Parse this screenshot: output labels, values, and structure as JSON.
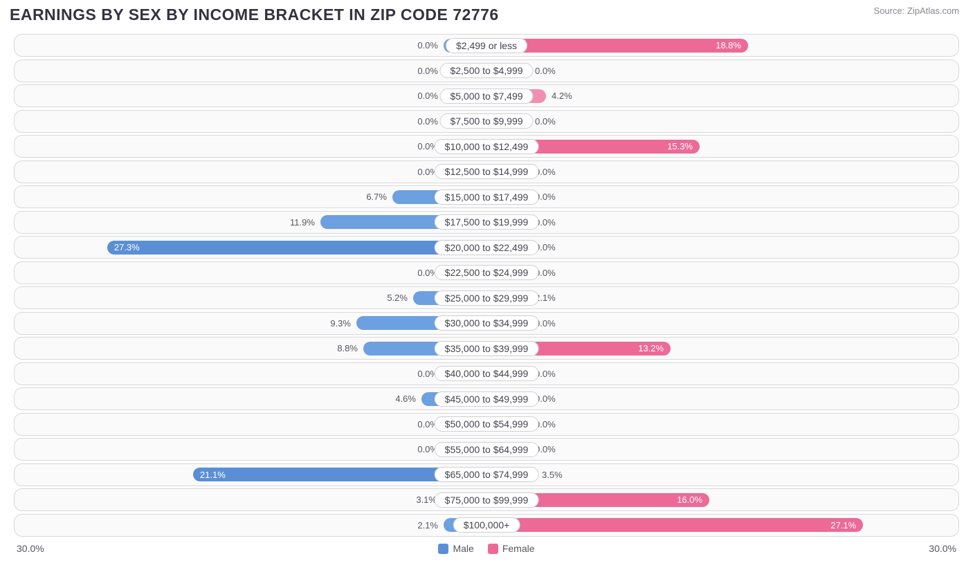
{
  "title": "EARNINGS BY SEX BY INCOME BRACKET IN ZIP CODE 72776",
  "source": "Source: ZipAtlas.com",
  "chart": {
    "type": "diverging-bar",
    "axis_max": 30.0,
    "axis_label_left": "30.0%",
    "axis_label_right": "30.0%",
    "min_bar_pct": 3.0,
    "background_color": "#fafafa",
    "row_border_color": "#d8d8dc",
    "label_pill_border": "#d0d0d4",
    "text_color": "#555560",
    "series": {
      "male": {
        "label": "Male",
        "color": "#6ca0e0",
        "color_dark": "#5a8fd6"
      },
      "female": {
        "label": "Female",
        "color": "#f28fb0",
        "color_dark": "#ec6a95"
      }
    },
    "value_inside_threshold": 12.0,
    "categories": [
      {
        "label": "$2,499 or less",
        "male": 0.0,
        "female": 18.8
      },
      {
        "label": "$2,500 to $4,999",
        "male": 0.0,
        "female": 0.0
      },
      {
        "label": "$5,000 to $7,499",
        "male": 0.0,
        "female": 4.2
      },
      {
        "label": "$7,500 to $9,999",
        "male": 0.0,
        "female": 0.0
      },
      {
        "label": "$10,000 to $12,499",
        "male": 0.0,
        "female": 15.3
      },
      {
        "label": "$12,500 to $14,999",
        "male": 0.0,
        "female": 0.0
      },
      {
        "label": "$15,000 to $17,499",
        "male": 6.7,
        "female": 0.0
      },
      {
        "label": "$17,500 to $19,999",
        "male": 11.9,
        "female": 0.0
      },
      {
        "label": "$20,000 to $22,499",
        "male": 27.3,
        "female": 0.0
      },
      {
        "label": "$22,500 to $24,999",
        "male": 0.0,
        "female": 0.0
      },
      {
        "label": "$25,000 to $29,999",
        "male": 5.2,
        "female": 2.1
      },
      {
        "label": "$30,000 to $34,999",
        "male": 9.3,
        "female": 0.0
      },
      {
        "label": "$35,000 to $39,999",
        "male": 8.8,
        "female": 13.2
      },
      {
        "label": "$40,000 to $44,999",
        "male": 0.0,
        "female": 0.0
      },
      {
        "label": "$45,000 to $49,999",
        "male": 4.6,
        "female": 0.0
      },
      {
        "label": "$50,000 to $54,999",
        "male": 0.0,
        "female": 0.0
      },
      {
        "label": "$55,000 to $64,999",
        "male": 0.0,
        "female": 0.0
      },
      {
        "label": "$65,000 to $74,999",
        "male": 21.1,
        "female": 3.5
      },
      {
        "label": "$75,000 to $99,999",
        "male": 3.1,
        "female": 16.0
      },
      {
        "label": "$100,000+",
        "male": 2.1,
        "female": 27.1
      }
    ]
  }
}
